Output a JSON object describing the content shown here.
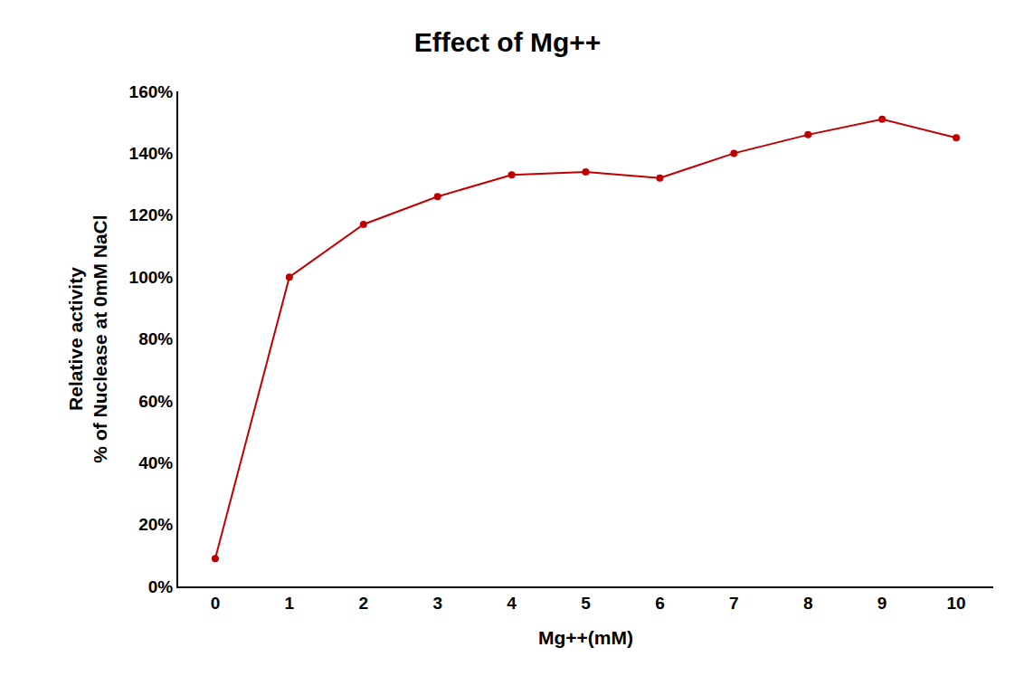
{
  "chart_data": {
    "type": "line",
    "title": "Effect of Mg++",
    "x_label": "Mg++(mM)",
    "y_label": [
      "Relative activity",
      "% of Nuclease at 0mM NaCl"
    ],
    "x": [
      0,
      1,
      2,
      3,
      4,
      5,
      6,
      7,
      8,
      9,
      10
    ],
    "values": [
      9,
      100,
      117,
      126,
      133,
      134,
      132,
      140,
      146,
      151,
      145
    ],
    "color": "#c00000",
    "marker": "circle",
    "line_style": "solid",
    "xlim": [
      -0.5,
      10.5
    ],
    "xticks": [
      0,
      1,
      2,
      3,
      4,
      5,
      6,
      7,
      8,
      9,
      10
    ],
    "ylim": [
      0,
      160
    ],
    "yticks": [
      {
        "value": 0,
        "label": "0%"
      },
      {
        "value": 20,
        "label": "20%"
      },
      {
        "value": 40,
        "label": "40%"
      },
      {
        "value": 60,
        "label": "60%"
      },
      {
        "value": 80,
        "label": "80%"
      },
      {
        "value": 100,
        "label": "100%"
      },
      {
        "value": 120,
        "label": "120%"
      },
      {
        "value": 140,
        "label": "140%"
      },
      {
        "value": 160,
        "label": "160%"
      }
    ],
    "grid": false
  }
}
